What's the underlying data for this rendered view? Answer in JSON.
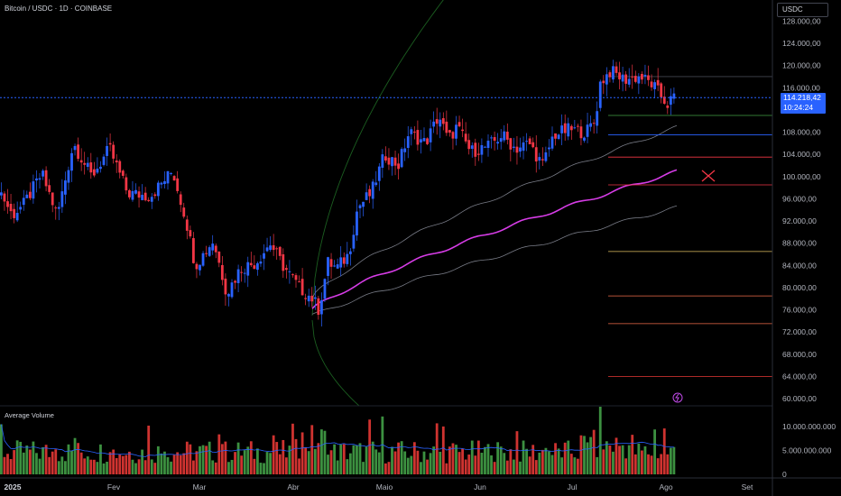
{
  "header": {
    "symbol_title": "Bitcoin / USDC · 1D · COINBASE",
    "currency": "USDC"
  },
  "price_axis": {
    "labels": [
      "128.000,00",
      "124.000,00",
      "120.000,00",
      "116.000,00",
      "108.000,00",
      "104.000,00",
      "100.000,00",
      "96.000,00",
      "92.000,00",
      "88.000,00",
      "84.000,00",
      "80.000,00",
      "76.000,00",
      "72.000,00",
      "68.000,00",
      "64.000,00",
      "60.000,00"
    ],
    "values": [
      128000,
      124000,
      120000,
      116000,
      108000,
      104000,
      100000,
      96000,
      92000,
      88000,
      84000,
      80000,
      76000,
      72000,
      68000,
      64000,
      60000
    ]
  },
  "last_price": {
    "price": "114.218,42",
    "countdown": "10:24:24",
    "value": 114218
  },
  "volume_pane": {
    "title": "Average Volume",
    "axis_labels": [
      "10.000.000.000",
      "5.000.000.000",
      "0"
    ],
    "axis_values": [
      10000000000,
      5000000000,
      0
    ]
  },
  "time_axis": {
    "labels": [
      "2025",
      "Fev",
      "Mar",
      "Abr",
      "Maio",
      "Jun",
      "Jul",
      "Ago",
      "Set"
    ]
  },
  "colors": {
    "up": "#2962ff",
    "down": "#f23645",
    "vol_up": "#43a047",
    "vol_down": "#e53935",
    "vwap": "#d63ce6",
    "band": "#787b86",
    "cone": "#1b5e20",
    "last_line": "#2962ff"
  },
  "chart_data": {
    "type": "candlestick",
    "ylim": [
      60000,
      128000
    ],
    "x": [
      "2025-01",
      "2025-02",
      "2025-03",
      "2025-04",
      "2025-05",
      "2025-06",
      "2025-07",
      "2025-08"
    ],
    "close_approx": [
      96000,
      97000,
      84000,
      78000,
      103000,
      106000,
      118000,
      114218
    ],
    "horizontal_levels": [
      118000,
      111000,
      107500,
      103500,
      98500,
      86500,
      78500,
      73500,
      64000
    ]
  }
}
